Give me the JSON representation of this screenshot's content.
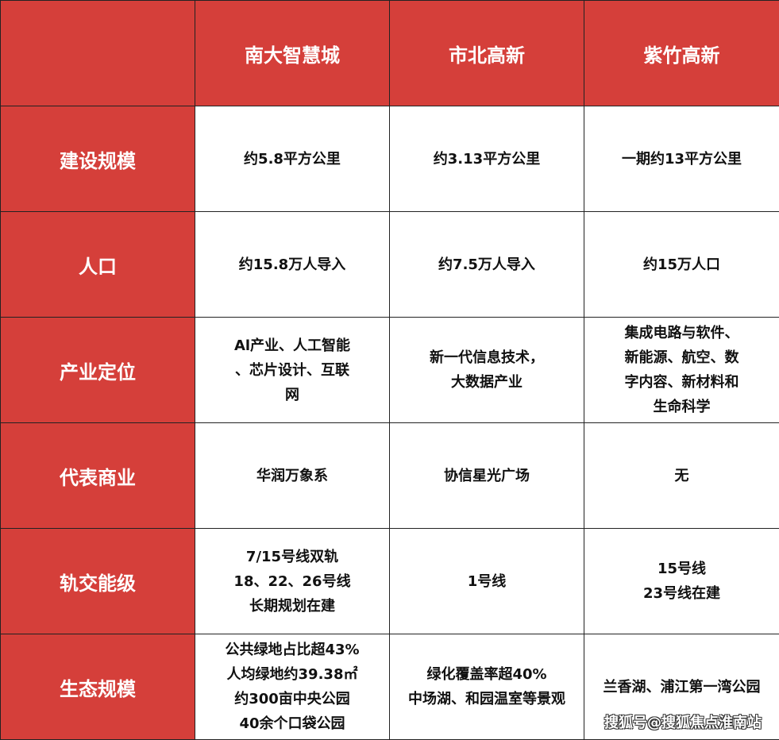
{
  "colors": {
    "header_bg": "#d53f3a",
    "header_text": "#ffffff",
    "cell_text": "#111111"
  },
  "header": [
    "",
    "南大智慧城",
    "市北高新",
    "紫竹高新"
  ],
  "rows": [
    {
      "label": "建设规模",
      "cells": [
        [
          "约5.8平方公里"
        ],
        [
          "约3.13平方公里"
        ],
        [
          "一期约13平方公里"
        ]
      ]
    },
    {
      "label": "人口",
      "cells": [
        [
          "约15.8万人导入"
        ],
        [
          "约7.5万人导入"
        ],
        [
          "约15万人口"
        ]
      ]
    },
    {
      "label": "产业定位",
      "cells": [
        [
          "Al产业、人工智能",
          "、芯片设计、互联",
          "网"
        ],
        [
          "新一代信息技术，",
          "大数据产业"
        ],
        [
          "集成电路与软件、",
          "新能源、航空、数",
          "字内容、新材料和",
          "生命科学"
        ]
      ]
    },
    {
      "label": "代表商业",
      "cells": [
        [
          "华润万象系"
        ],
        [
          "协信星光广场"
        ],
        [
          "无"
        ]
      ]
    },
    {
      "label": "轨交能级",
      "cells": [
        [
          "7/15号线双轨",
          "18、22、26号线",
          "长期规划在建"
        ],
        [
          "1号线"
        ],
        [
          "15号线",
          "23号线在建"
        ]
      ]
    },
    {
      "label": "生态规模",
      "cells": [
        [
          "公共绿地占比超43%",
          "人均绿地约39.38㎡",
          "约300亩中央公园",
          "40余个口袋公园"
        ],
        [
          "绿化覆盖率超40%",
          "中场湖、和园温室等景观"
        ],
        [
          "兰香湖、浦江第一湾公园"
        ]
      ]
    }
  ],
  "watermark": "搜狐号@搜狐焦点淮南站"
}
